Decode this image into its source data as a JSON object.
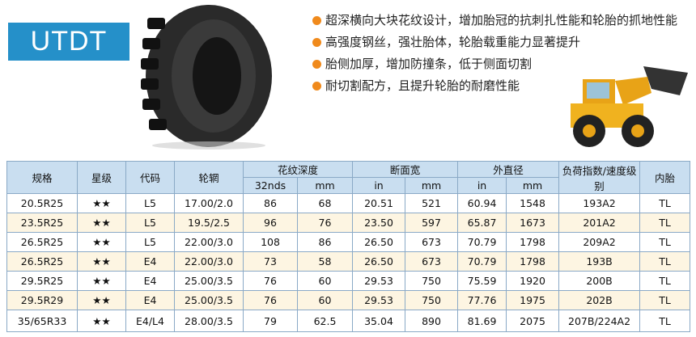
{
  "header": {
    "title": "UTDT",
    "features": [
      "超深横向大块花纹设计，增加胎冠的抗刺扎性能和轮胎的抓地性能",
      "高强度钢丝，强壮胎体，轮胎载重能力显著提升",
      "胎侧加厚，增加防撞条，低于侧面切割",
      "耐切割配方，且提升轮胎的耐磨性能"
    ]
  },
  "table": {
    "headers": [
      "规格",
      "星级",
      "代码",
      "轮辋",
      "花纹深度",
      "断面宽",
      "外直径",
      "负荷指数/速度级别",
      "内胎"
    ],
    "subheaders": [
      "32nds",
      "mm",
      "in",
      "mm",
      "in",
      "mm"
    ],
    "rows": [
      [
        "20.5R25",
        "★★",
        "L5",
        "17.00/2.0",
        "86",
        "68",
        "20.51",
        "521",
        "60.94",
        "1548",
        "193A2",
        "TL"
      ],
      [
        "23.5R25",
        "★★",
        "L5",
        "19.5/2.5",
        "96",
        "76",
        "23.50",
        "597",
        "65.87",
        "1673",
        "201A2",
        "TL"
      ],
      [
        "26.5R25",
        "★★",
        "L5",
        "22.00/3.0",
        "108",
        "86",
        "26.50",
        "673",
        "70.79",
        "1798",
        "209A2",
        "TL"
      ],
      [
        "26.5R25",
        "★★",
        "E4",
        "22.00/3.0",
        "73",
        "58",
        "26.50",
        "673",
        "70.79",
        "1798",
        "193B",
        "TL"
      ],
      [
        "29.5R25",
        "★★",
        "E4",
        "25.00/3.5",
        "76",
        "60",
        "29.53",
        "750",
        "75.59",
        "1920",
        "200B",
        "TL"
      ],
      [
        "29.5R29",
        "★★",
        "E4",
        "25.00/3.5",
        "76",
        "60",
        "29.53",
        "750",
        "77.76",
        "1975",
        "202B",
        "TL"
      ],
      [
        "35/65R33",
        "★★",
        "E4/L4",
        "28.00/3.5",
        "79",
        "62.5",
        "35.04",
        "890",
        "81.69",
        "2075",
        "207B/224A2",
        "TL"
      ]
    ]
  }
}
